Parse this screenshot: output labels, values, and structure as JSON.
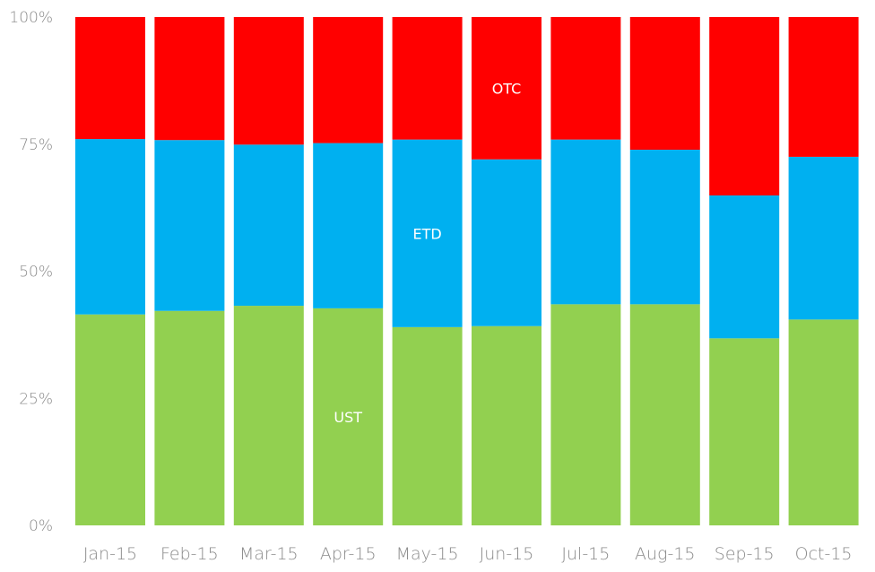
{
  "chart_data": {
    "type": "bar",
    "stacked": true,
    "percent": true,
    "categories": [
      "Jan-15",
      "Feb-15",
      "Mar-15",
      "Apr-15",
      "May-15",
      "Jun-15",
      "Jul-15",
      "Aug-15",
      "Sep-15",
      "Oct-15"
    ],
    "series": [
      {
        "name": "UST",
        "color": "#92d050",
        "values": [
          41.5,
          42.2,
          43.2,
          42.7,
          39.0,
          39.2,
          43.5,
          43.5,
          36.8,
          40.5
        ]
      },
      {
        "name": "ETD",
        "color": "#00b0f0",
        "values": [
          34.5,
          33.6,
          31.7,
          32.5,
          36.9,
          32.8,
          32.4,
          30.4,
          28.1,
          32.0
        ]
      },
      {
        "name": "OTC",
        "color": "#ff0000",
        "values": [
          24.0,
          24.2,
          25.1,
          24.8,
          24.1,
          28.0,
          24.1,
          26.1,
          35.1,
          27.5
        ]
      }
    ],
    "series_label_positions": {
      "UST": "Apr-15",
      "ETD": "May-15",
      "OTC": "Jun-15"
    },
    "yticks": [
      "0%",
      "25%",
      "50%",
      "75%",
      "100%"
    ],
    "ylim": [
      0,
      100
    ]
  }
}
